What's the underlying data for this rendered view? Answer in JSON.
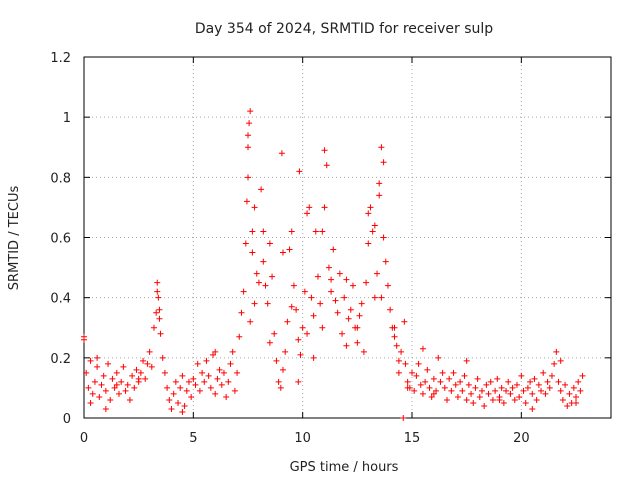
{
  "chart_data": {
    "type": "scatter",
    "title": "Day 354 of 2024, SRMTID for receiver sulp",
    "xlabel": "GPS time / hours",
    "ylabel": "SRMTID / TECUs",
    "xlim": [
      0,
      24.1
    ],
    "ylim": [
      0,
      1.2
    ],
    "xticks": [
      0,
      5,
      10,
      15,
      20
    ],
    "xtick_labels": [
      "0",
      "5",
      "10",
      "15",
      "20"
    ],
    "yticks": [
      0,
      0.2,
      0.4,
      0.6,
      0.8,
      1.0,
      1.2
    ],
    "ytick_labels": [
      "0",
      "0.2",
      "0.4",
      "0.6",
      "0.8",
      "1",
      "1.2"
    ],
    "grid": true,
    "marker": "+",
    "color": "#ff0000",
    "series": [
      {
        "name": "SRMTID",
        "x": [
          0.0,
          0.1,
          0.2,
          0.3,
          0.4,
          0.5,
          0.6,
          0.7,
          0.8,
          0.9,
          1.0,
          1.1,
          1.2,
          1.3,
          1.4,
          1.5,
          1.6,
          1.7,
          1.8,
          1.9,
          2.0,
          2.1,
          2.2,
          2.3,
          2.4,
          2.5,
          2.6,
          2.7,
          2.8,
          2.9,
          3.0,
          3.1,
          3.2,
          3.3,
          3.35,
          3.4,
          3.45,
          3.5,
          3.6,
          3.7,
          3.8,
          3.9,
          4.0,
          4.1,
          4.2,
          4.3,
          4.4,
          4.5,
          4.6,
          4.7,
          4.8,
          4.9,
          5.0,
          5.1,
          5.2,
          5.3,
          5.4,
          5.5,
          5.6,
          5.7,
          5.8,
          5.9,
          6.0,
          6.1,
          6.2,
          6.3,
          6.4,
          6.5,
          6.6,
          6.7,
          6.8,
          6.9,
          7.0,
          7.1,
          7.2,
          7.3,
          7.4,
          7.45,
          7.5,
          7.55,
          7.6,
          7.7,
          7.8,
          7.9,
          8.0,
          8.1,
          8.2,
          8.3,
          8.4,
          8.5,
          8.6,
          8.7,
          8.8,
          8.9,
          9.0,
          9.1,
          9.2,
          9.3,
          9.4,
          9.5,
          9.6,
          9.7,
          9.8,
          9.9,
          10.0,
          10.1,
          10.2,
          10.3,
          10.4,
          10.5,
          10.6,
          10.7,
          10.8,
          10.9,
          11.0,
          11.1,
          11.2,
          11.3,
          11.4,
          11.5,
          11.6,
          11.7,
          11.8,
          11.9,
          12.0,
          12.1,
          12.2,
          12.3,
          12.4,
          12.5,
          12.6,
          12.7,
          12.8,
          12.9,
          13.0,
          13.1,
          13.2,
          13.3,
          13.4,
          13.5,
          13.6,
          13.7,
          13.8,
          13.9,
          14.0,
          14.1,
          14.2,
          14.3,
          14.4,
          14.5,
          14.6,
          14.65,
          14.7,
          14.8,
          14.9,
          15.0,
          15.1,
          15.2,
          15.3,
          15.4,
          15.5,
          15.6,
          15.7,
          15.8,
          15.9,
          16.0,
          16.1,
          16.2,
          16.3,
          16.4,
          16.5,
          16.6,
          16.7,
          16.8,
          16.9,
          17.0,
          17.1,
          17.2,
          17.3,
          17.4,
          17.5,
          17.6,
          17.7,
          17.8,
          17.9,
          18.0,
          18.1,
          18.2,
          18.3,
          18.4,
          18.5,
          18.6,
          18.7,
          18.8,
          18.9,
          19.0,
          19.1,
          19.2,
          19.3,
          19.4,
          19.5,
          19.6,
          19.7,
          19.8,
          19.9,
          20.0,
          20.1,
          20.2,
          20.3,
          20.4,
          20.5,
          20.6,
          20.7,
          20.8,
          20.9,
          21.0,
          21.1,
          21.2,
          21.3,
          21.4,
          21.5,
          21.6,
          21.7,
          21.8,
          21.9,
          22.0,
          22.1,
          22.2,
          22.3,
          22.4,
          22.5,
          22.6,
          22.7,
          22.8,
          0.0,
          0.3,
          0.6,
          1.0,
          1.5,
          2.5,
          3.35,
          3.45,
          4.5,
          6.0,
          7.5,
          7.5,
          7.6,
          7.7,
          7.8,
          8.2,
          8.5,
          9.05,
          9.1,
          9.5,
          9.8,
          9.85,
          10.2,
          10.5,
          10.9,
          11.0,
          11.3,
          12.0,
          12.5,
          13.0,
          13.3,
          13.5,
          13.6,
          13.7,
          14.2,
          14.4,
          14.8,
          15.5,
          16.0,
          17.5,
          19.0,
          20.5,
          21.8,
          22.5
        ],
        "y": [
          0.27,
          0.15,
          0.1,
          0.19,
          0.08,
          0.12,
          0.17,
          0.07,
          0.11,
          0.14,
          0.09,
          0.18,
          0.06,
          0.13,
          0.1,
          0.15,
          0.08,
          0.12,
          0.17,
          0.09,
          0.11,
          0.06,
          0.14,
          0.1,
          0.16,
          0.12,
          0.15,
          0.19,
          0.13,
          0.18,
          0.22,
          0.17,
          0.3,
          0.35,
          0.45,
          0.4,
          0.33,
          0.28,
          0.2,
          0.15,
          0.1,
          0.06,
          0.03,
          0.08,
          0.12,
          0.05,
          0.1,
          0.14,
          0.04,
          0.09,
          0.12,
          0.07,
          0.13,
          0.11,
          0.18,
          0.09,
          0.15,
          0.12,
          0.19,
          0.14,
          0.1,
          0.21,
          0.08,
          0.13,
          0.16,
          0.11,
          0.15,
          0.07,
          0.12,
          0.18,
          0.22,
          0.09,
          0.15,
          0.27,
          0.35,
          0.42,
          0.58,
          0.72,
          0.9,
          0.98,
          1.02,
          0.62,
          0.38,
          0.48,
          0.45,
          0.76,
          0.52,
          0.44,
          0.38,
          0.58,
          0.47,
          0.28,
          0.19,
          0.12,
          0.1,
          0.16,
          0.22,
          0.32,
          0.56,
          0.62,
          0.44,
          0.36,
          0.26,
          0.21,
          0.3,
          0.42,
          0.68,
          0.7,
          0.4,
          0.34,
          0.62,
          0.47,
          0.38,
          0.3,
          0.89,
          0.84,
          0.5,
          0.42,
          0.56,
          0.39,
          0.35,
          0.48,
          0.28,
          0.4,
          0.46,
          0.33,
          0.36,
          0.44,
          0.3,
          0.25,
          0.34,
          0.38,
          0.22,
          0.45,
          0.58,
          0.7,
          0.62,
          0.4,
          0.48,
          0.78,
          0.9,
          0.6,
          0.52,
          0.44,
          0.36,
          0.3,
          0.27,
          0.24,
          0.19,
          0.22,
          0.0,
          0.32,
          0.18,
          0.12,
          0.1,
          0.15,
          0.09,
          0.14,
          0.18,
          0.11,
          0.08,
          0.12,
          0.16,
          0.1,
          0.07,
          0.13,
          0.09,
          0.2,
          0.12,
          0.15,
          0.1,
          0.06,
          0.13,
          0.09,
          0.15,
          0.11,
          0.07,
          0.12,
          0.09,
          0.14,
          0.06,
          0.11,
          0.08,
          0.05,
          0.1,
          0.13,
          0.07,
          0.09,
          0.04,
          0.11,
          0.08,
          0.12,
          0.06,
          0.09,
          0.13,
          0.07,
          0.1,
          0.05,
          0.09,
          0.12,
          0.08,
          0.1,
          0.06,
          0.11,
          0.07,
          0.14,
          0.09,
          0.05,
          0.1,
          0.12,
          0.08,
          0.13,
          0.06,
          0.11,
          0.09,
          0.15,
          0.08,
          0.12,
          0.1,
          0.14,
          0.18,
          0.22,
          0.12,
          0.09,
          0.06,
          0.11,
          0.04,
          0.08,
          0.05,
          0.1,
          0.07,
          0.12,
          0.09,
          0.14,
          0.26,
          0.05,
          0.2,
          0.03,
          0.11,
          0.13,
          0.42,
          0.36,
          0.02,
          0.22,
          0.8,
          0.94,
          0.32,
          0.55,
          0.7,
          0.62,
          0.25,
          0.88,
          0.55,
          0.37,
          0.12,
          0.82,
          0.28,
          0.2,
          0.62,
          0.7,
          0.46,
          0.24,
          0.3,
          0.68,
          0.64,
          0.74,
          0.4,
          0.85,
          0.3,
          0.15,
          0.1,
          0.23,
          0.08,
          0.19,
          0.06,
          0.03,
          0.19,
          0.05
        ]
      }
    ]
  }
}
